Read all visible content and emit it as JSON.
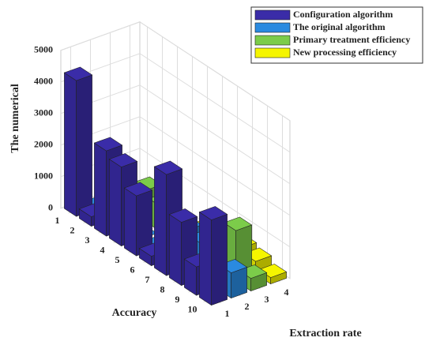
{
  "chart_data": {
    "type": "bar3",
    "zlabel": "The numerical",
    "xlabel": "Accuracy",
    "ylabel": "Extraction rate",
    "categories": [
      "1",
      "2",
      "3",
      "4",
      "5",
      "6",
      "7",
      "8",
      "9",
      "10"
    ],
    "depth_categories": [
      "1",
      "2",
      "3",
      "4"
    ],
    "series": [
      {
        "name": "Configuration algorithm",
        "color": "#3a2ca8",
        "values": [
          4300,
          300,
          2700,
          2500,
          1900,
          300,
          3200,
          2000,
          900,
          2700
        ]
      },
      {
        "name": "The original algorithm",
        "color": "#2a8ae0",
        "values": [
          0,
          0,
          0,
          0,
          0,
          0,
          1200,
          1100,
          200,
          800
        ]
      },
      {
        "name": "Primary treatment efficiency",
        "color": "#7ccc4a",
        "values": [
          0,
          0,
          1000,
          800,
          0,
          0,
          0,
          0,
          1600,
          400
        ]
      },
      {
        "name": "New processing efficiency",
        "color": "#f5f500",
        "values": [
          0,
          0,
          0,
          0,
          0,
          0,
          0,
          500,
          400,
          200
        ]
      }
    ],
    "zlim": [
      0,
      5000
    ],
    "zticks": [
      0,
      1000,
      2000,
      3000,
      4000,
      5000
    ],
    "grid": true
  }
}
